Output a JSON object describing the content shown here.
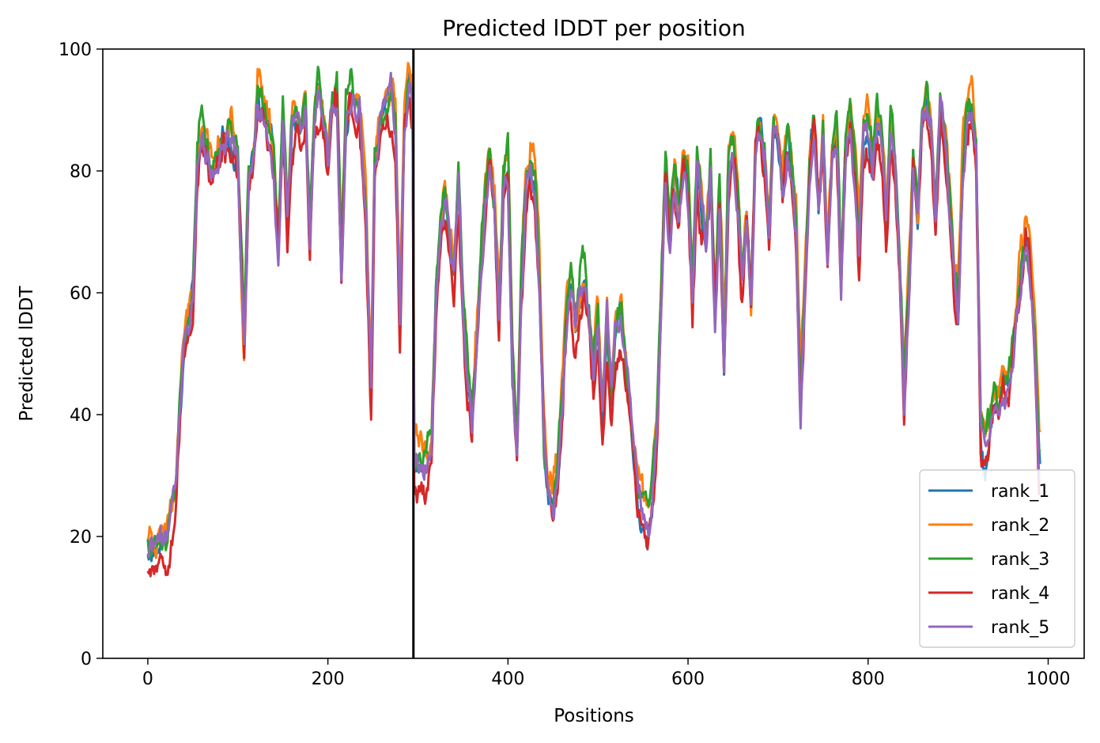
{
  "chart_data": {
    "type": "line",
    "title": "Predicted lDDT per position",
    "xlabel": "Positions",
    "ylabel": "Predicted lDDT",
    "xlim": [
      -50,
      1040
    ],
    "ylim": [
      0,
      100
    ],
    "xticks": [
      0,
      200,
      400,
      600,
      800,
      1000
    ],
    "yticks": [
      0,
      20,
      40,
      60,
      80,
      100
    ],
    "grid": false,
    "legend_position": "lower-right",
    "vline": {
      "x": 295,
      "color": "#000000"
    },
    "base_profile": [
      [
        0,
        18
      ],
      [
        10,
        19
      ],
      [
        20,
        20
      ],
      [
        30,
        28
      ],
      [
        40,
        52
      ],
      [
        50,
        60
      ],
      [
        55,
        80
      ],
      [
        60,
        86
      ],
      [
        65,
        83
      ],
      [
        70,
        79
      ],
      [
        78,
        82
      ],
      [
        85,
        84
      ],
      [
        92,
        86
      ],
      [
        100,
        81
      ],
      [
        107,
        50
      ],
      [
        112,
        78
      ],
      [
        118,
        82
      ],
      [
        122,
        92
      ],
      [
        128,
        88
      ],
      [
        134,
        86
      ],
      [
        140,
        80
      ],
      [
        145,
        66
      ],
      [
        150,
        88
      ],
      [
        155,
        70
      ],
      [
        160,
        86
      ],
      [
        165,
        90
      ],
      [
        170,
        86
      ],
      [
        175,
        92
      ],
      [
        180,
        68
      ],
      [
        185,
        88
      ],
      [
        190,
        92
      ],
      [
        196,
        86
      ],
      [
        200,
        81
      ],
      [
        205,
        90
      ],
      [
        210,
        92
      ],
      [
        215,
        62
      ],
      [
        220,
        88
      ],
      [
        225,
        92
      ],
      [
        230,
        90
      ],
      [
        235,
        90
      ],
      [
        242,
        72
      ],
      [
        248,
        42
      ],
      [
        252,
        80
      ],
      [
        258,
        88
      ],
      [
        264,
        90
      ],
      [
        270,
        93
      ],
      [
        275,
        86
      ],
      [
        280,
        55
      ],
      [
        285,
        88
      ],
      [
        290,
        93
      ],
      [
        294,
        92
      ],
      [
        296,
        32
      ],
      [
        305,
        31
      ],
      [
        315,
        33
      ],
      [
        320,
        58
      ],
      [
        330,
        76
      ],
      [
        335,
        68
      ],
      [
        340,
        62
      ],
      [
        345,
        78
      ],
      [
        350,
        56
      ],
      [
        355,
        44
      ],
      [
        360,
        38
      ],
      [
        365,
        50
      ],
      [
        370,
        65
      ],
      [
        375,
        76
      ],
      [
        380,
        82
      ],
      [
        385,
        74
      ],
      [
        390,
        54
      ],
      [
        395,
        78
      ],
      [
        400,
        80
      ],
      [
        405,
        48
      ],
      [
        410,
        33
      ],
      [
        415,
        60
      ],
      [
        420,
        75
      ],
      [
        425,
        80
      ],
      [
        430,
        76
      ],
      [
        435,
        62
      ],
      [
        440,
        36
      ],
      [
        445,
        26
      ],
      [
        450,
        25
      ],
      [
        455,
        30
      ],
      [
        460,
        40
      ],
      [
        465,
        56
      ],
      [
        470,
        60
      ],
      [
        475,
        52
      ],
      [
        480,
        58
      ],
      [
        485,
        62
      ],
      [
        490,
        55
      ],
      [
        495,
        46
      ],
      [
        500,
        55
      ],
      [
        505,
        38
      ],
      [
        510,
        55
      ],
      [
        515,
        42
      ],
      [
        520,
        54
      ],
      [
        525,
        56
      ],
      [
        530,
        50
      ],
      [
        535,
        42
      ],
      [
        540,
        34
      ],
      [
        545,
        27
      ],
      [
        550,
        24
      ],
      [
        555,
        22
      ],
      [
        560,
        26
      ],
      [
        565,
        36
      ],
      [
        570,
        60
      ],
      [
        575,
        80
      ],
      [
        580,
        70
      ],
      [
        585,
        78
      ],
      [
        590,
        72
      ],
      [
        595,
        82
      ],
      [
        600,
        78
      ],
      [
        605,
        60
      ],
      [
        610,
        82
      ],
      [
        615,
        74
      ],
      [
        620,
        68
      ],
      [
        625,
        80
      ],
      [
        630,
        56
      ],
      [
        635,
        75
      ],
      [
        640,
        48
      ],
      [
        645,
        80
      ],
      [
        650,
        84
      ],
      [
        655,
        76
      ],
      [
        660,
        62
      ],
      [
        665,
        72
      ],
      [
        670,
        58
      ],
      [
        675,
        82
      ],
      [
        680,
        86
      ],
      [
        685,
        82
      ],
      [
        690,
        70
      ],
      [
        695,
        87
      ],
      [
        700,
        85
      ],
      [
        705,
        78
      ],
      [
        710,
        86
      ],
      [
        715,
        80
      ],
      [
        720,
        72
      ],
      [
        725,
        42
      ],
      [
        730,
        62
      ],
      [
        735,
        82
      ],
      [
        740,
        87
      ],
      [
        745,
        72
      ],
      [
        750,
        86
      ],
      [
        755,
        66
      ],
      [
        760,
        82
      ],
      [
        765,
        86
      ],
      [
        770,
        62
      ],
      [
        775,
        82
      ],
      [
        780,
        88
      ],
      [
        785,
        80
      ],
      [
        790,
        66
      ],
      [
        795,
        84
      ],
      [
        800,
        86
      ],
      [
        805,
        80
      ],
      [
        810,
        87
      ],
      [
        815,
        84
      ],
      [
        820,
        70
      ],
      [
        825,
        86
      ],
      [
        830,
        80
      ],
      [
        835,
        64
      ],
      [
        840,
        42
      ],
      [
        845,
        58
      ],
      [
        850,
        80
      ],
      [
        855,
        70
      ],
      [
        860,
        88
      ],
      [
        865,
        90
      ],
      [
        870,
        86
      ],
      [
        875,
        72
      ],
      [
        880,
        90
      ],
      [
        885,
        86
      ],
      [
        890,
        76
      ],
      [
        895,
        62
      ],
      [
        900,
        56
      ],
      [
        905,
        80
      ],
      [
        910,
        88
      ],
      [
        915,
        90
      ],
      [
        920,
        82
      ],
      [
        925,
        38
      ],
      [
        930,
        32
      ],
      [
        935,
        36
      ],
      [
        940,
        42
      ],
      [
        945,
        40
      ],
      [
        950,
        46
      ],
      [
        955,
        44
      ],
      [
        960,
        48
      ],
      [
        965,
        55
      ],
      [
        970,
        62
      ],
      [
        975,
        68
      ],
      [
        980,
        64
      ],
      [
        985,
        52
      ],
      [
        990,
        32
      ]
    ],
    "series": [
      {
        "name": "rank_1",
        "color": "#1f77b4",
        "offset": 0,
        "amp": 1.2,
        "seed": 11
      },
      {
        "name": "rank_2",
        "color": "#ff7f0e",
        "offset": 2.5,
        "amp": 1.5,
        "seed": 23
      },
      {
        "name": "rank_3",
        "color": "#2ca02c",
        "offset": 2.0,
        "amp": 1.4,
        "seed": 37
      },
      {
        "name": "rank_4",
        "color": "#d62728",
        "offset": -2.0,
        "amp": 1.5,
        "seed": 53
      },
      {
        "name": "rank_5",
        "color": "#9467bd",
        "offset": -0.5,
        "amp": 1.3,
        "seed": 71
      }
    ],
    "n_points": 992
  }
}
